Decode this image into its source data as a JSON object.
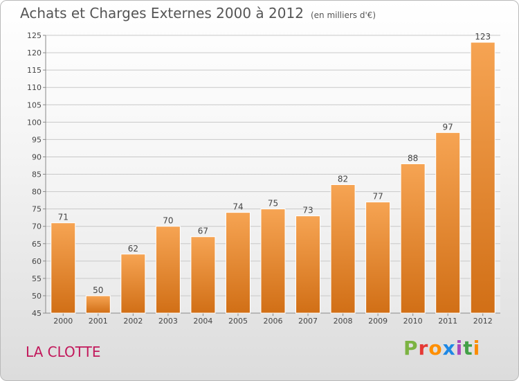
{
  "title": "Achats et Charges Externes 2000 à 2012",
  "subtitle": "(en milliers d'€)",
  "place": "LA CLOTTE",
  "brand": {
    "letters": [
      "P",
      "r",
      "o",
      "x",
      "i",
      "t",
      "i"
    ],
    "colors": [
      "#7cb342",
      "#e53935",
      "#ff8f00",
      "#1e88e5",
      "#ab47bc",
      "#43a047",
      "#fb8c00"
    ]
  },
  "chart_data": {
    "type": "bar",
    "title": "Achats et Charges Externes 2000 à 2012",
    "subtitle": "(en milliers d'€)",
    "categories": [
      "2000",
      "2001",
      "2002",
      "2003",
      "2004",
      "2005",
      "2006",
      "2007",
      "2008",
      "2009",
      "2010",
      "2011",
      "2012"
    ],
    "values": [
      71,
      50,
      62,
      70,
      67,
      74,
      75,
      73,
      82,
      77,
      88,
      97,
      123
    ],
    "ylim": [
      45,
      125
    ],
    "yticks": [
      45,
      50,
      55,
      60,
      65,
      70,
      75,
      80,
      85,
      90,
      95,
      100,
      105,
      110,
      115,
      120,
      125
    ],
    "grid": true,
    "bar_color": "#f0902d"
  }
}
